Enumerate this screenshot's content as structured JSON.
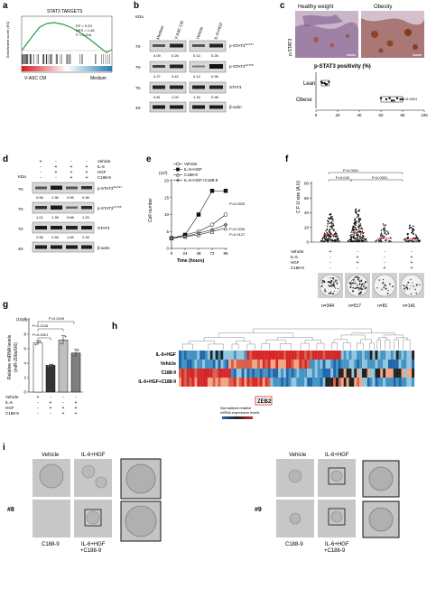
{
  "panels": {
    "a": {
      "letter": "a",
      "title": "STAT3 TARGETS",
      "ylabel": "Enrichment score (ES)",
      "stats": [
        "ES = 0.53",
        "NES = 1.46",
        "P = 0.018"
      ],
      "left_label": "V-ASC CM",
      "right_label": "Medium"
    },
    "b": {
      "letter": "b",
      "kda": "KDa",
      "columns": [
        "Medium",
        "V-ASC CM",
        "Vehicle",
        "IL-6+HGF"
      ],
      "mw": [
        "70-",
        "70-",
        "70-",
        "40-"
      ],
      "rows": [
        {
          "name": "p-STAT3",
          "sup": "Ser727",
          "values": [
            "0.09",
            "0.26",
            "0.13",
            "0.26"
          ]
        },
        {
          "name": "p-STAT3",
          "sup": "Tyr705",
          "values": [
            "0.27",
            "0.42",
            "0.14",
            "0.96"
          ]
        },
        {
          "name": "STAT3",
          "sup": "",
          "values": [
            "0.81",
            "1.02",
            "1.18",
            "0.98"
          ]
        },
        {
          "name": "β-actin",
          "sup": "",
          "values": []
        }
      ]
    },
    "c": {
      "letter": "c",
      "img_labels": [
        "Healthy weight",
        "Obesity"
      ],
      "side_label": "p-STAT3",
      "plot_title": "p-STAT3 positivity (%)",
      "groups": [
        "Lean",
        "Obese"
      ],
      "p_value": "P=0.0001"
    },
    "d": {
      "letter": "d",
      "kda": "KDa",
      "legend": [
        "Vehicle",
        "IL-6",
        "HGF",
        "C188-9"
      ],
      "signs": [
        [
          "+",
          "-",
          "-",
          "-"
        ],
        [
          "-",
          "+",
          "+",
          "+"
        ],
        [
          "-",
          "+",
          "+",
          "+"
        ],
        [
          "-",
          "-",
          "+",
          "+"
        ]
      ],
      "mw": [
        "70-",
        "70-",
        "70-",
        "40-"
      ],
      "rows": [
        {
          "name": "p-STAT3",
          "sup": "Ser727",
          "values": [
            "0.56",
            "1.36",
            "0.65",
            "0.96"
          ]
        },
        {
          "name": "p-STAT3",
          "sup": "Tyr705",
          "values": [
            "1.01",
            "1.39",
            "0.68",
            "1.25"
          ]
        },
        {
          "name": "STAT3",
          "sup": "",
          "values": [
            "2.56",
            "2.58",
            "1.89",
            "2.33"
          ]
        },
        {
          "name": "β-actin",
          "sup": "",
          "values": []
        }
      ]
    },
    "e": {
      "letter": "e",
      "exp": "(10³)",
      "legend": [
        "Vehicle",
        "IL-6+HGF",
        "C188-9",
        "IL-6+HGF+C188-9"
      ],
      "p_values": [
        "P=0.0025",
        "P=0.0226",
        "P=0.0127"
      ],
      "ylabel": "Cell number",
      "xlabel": "Time (hours)"
    },
    "f": {
      "letter": "f",
      "ylabel": "C F U size (A U)",
      "pvals": [
        "P<0.0001",
        "P=0.043",
        "P<0.0001"
      ],
      "legend": [
        "Vehicle",
        "IL-6",
        "HGF",
        "C188-9"
      ],
      "signs": [
        [
          "+",
          "-",
          "-",
          "-"
        ],
        [
          "-",
          "+",
          "-",
          "+"
        ],
        [
          "-",
          "+",
          "-",
          "+"
        ],
        [
          "-",
          "-",
          "+",
          "+"
        ]
      ],
      "counts": [
        "n=344",
        "n=517",
        "n=81",
        "n=141"
      ]
    },
    "g": {
      "letter": "g",
      "exp": "(10⁻²)",
      "ylabel": "Relative miRNA levels",
      "ylabel2": "(miR-200a/U6)",
      "pvals": [
        "P=0.0199",
        "P=0.2126",
        "P<0.0001"
      ],
      "legend": [
        "Vehicle",
        "IL-6",
        "HGF",
        "C188-9"
      ],
      "signs": [
        [
          "+",
          "-",
          "-",
          "-"
        ],
        [
          "-",
          "+",
          "-",
          "+"
        ],
        [
          "-",
          "+",
          "+",
          "+"
        ],
        [
          "-",
          "-",
          "+",
          "+"
        ]
      ]
    },
    "h": {
      "letter": "h",
      "rows": [
        "IL-6+HGF",
        "Vehicle",
        "C188-9",
        "IL-6+HGF+C188-9"
      ],
      "highlight": "ZEB2",
      "colorbar_label": "Normalized relative",
      "colorbar_label2": "mRNA expression levels"
    },
    "i": {
      "letter": "i",
      "left": {
        "id": "#8",
        "top": [
          "Vehicle",
          "IL-6+HGF"
        ],
        "bottom": [
          "C188-9",
          "IL-6+HGF",
          "+C188-9"
        ]
      },
      "right": {
        "id": "#9",
        "top": [
          "Vehicle",
          "IL-6+HGF"
        ],
        "bottom": [
          "C188-9",
          "IL-6+HGF",
          "+C188-9"
        ]
      }
    }
  },
  "chart_data": [
    {
      "type": "line",
      "panel": "e",
      "x": [
        0,
        24,
        48,
        72,
        96
      ],
      "xlim": [
        0,
        96
      ],
      "ylim": [
        0,
        20
      ],
      "yticks": [
        0,
        5,
        10,
        15,
        20
      ],
      "series": [
        {
          "name": "Vehicle",
          "values": [
            3,
            4,
            5,
            7,
            10
          ]
        },
        {
          "name": "IL-6+HGF",
          "values": [
            3,
            4,
            10,
            17,
            17
          ]
        },
        {
          "name": "C188-9",
          "values": [
            3,
            3.5,
            4,
            5,
            6
          ]
        },
        {
          "name": "IL-6+HGF+C188-9",
          "values": [
            3,
            3.5,
            4.5,
            5.5,
            7
          ]
        }
      ]
    },
    {
      "type": "scatter",
      "panel": "f",
      "categories": [
        "1",
        "2",
        "3",
        "4"
      ],
      "ylim": [
        0,
        80
      ],
      "yticks": [
        0,
        20,
        40,
        60,
        80
      ],
      "medians": [
        10,
        13,
        5,
        4
      ],
      "max": [
        40,
        45,
        25,
        23
      ]
    },
    {
      "type": "bar",
      "panel": "g",
      "categories": [
        "Vehicle",
        "IL-6+HGF",
        "C188-9",
        "IL-6+HGF+C188-9"
      ],
      "values": [
        6.8,
        3.7,
        7.2,
        5.4
      ],
      "errors": [
        0.3,
        0.15,
        0.6,
        0.5
      ],
      "ylim": [
        0,
        10
      ],
      "yticks": [
        0,
        2,
        4,
        6,
        8,
        10
      ]
    },
    {
      "type": "scatter",
      "panel": "c",
      "categories": [
        "Lean",
        "Obese"
      ],
      "xlim": [
        0,
        100
      ],
      "xticks": [
        0,
        20,
        40,
        60,
        80,
        100
      ],
      "points": [
        [
          5,
          8,
          10,
          12,
          6,
          9
        ],
        [
          60,
          65,
          70,
          75,
          80,
          72,
          68,
          78
        ]
      ]
    }
  ]
}
